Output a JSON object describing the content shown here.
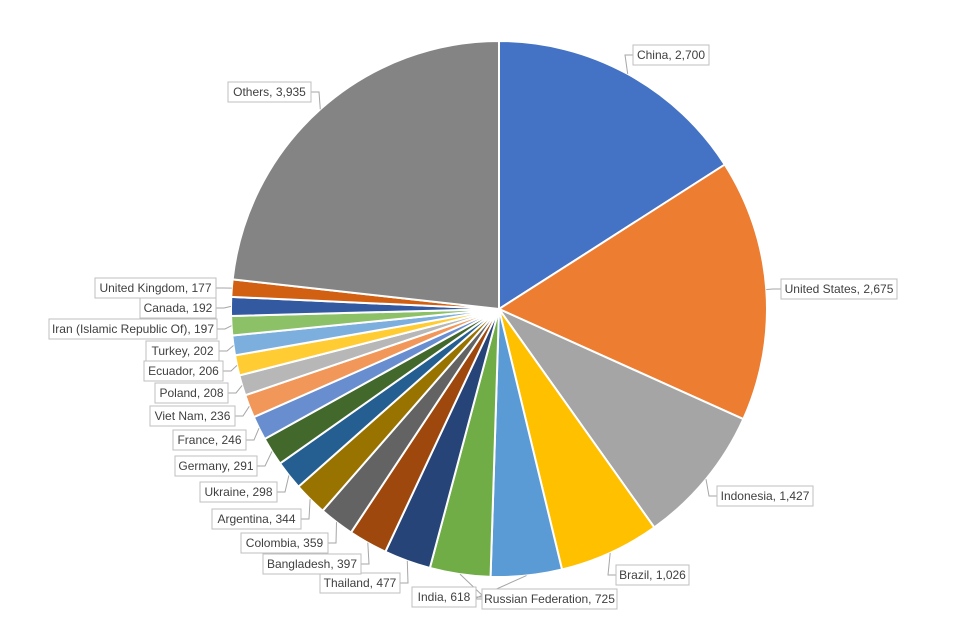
{
  "chart_data": {
    "type": "pie",
    "title": "",
    "legend": "none",
    "start_angle_deg": 0,
    "direction": "clockwise",
    "slices": [
      {
        "label": "China",
        "value": 2700,
        "display": "China, 2,700",
        "color": "#4472C4"
      },
      {
        "label": "United States",
        "value": 2675,
        "display": "United States, 2,675",
        "color": "#ED7D31"
      },
      {
        "label": "Indonesia",
        "value": 1427,
        "display": "Indonesia, 1,427",
        "color": "#A5A5A5"
      },
      {
        "label": "Brazil",
        "value": 1026,
        "display": "Brazil, 1,026",
        "color": "#FFC000"
      },
      {
        "label": "Russian Federation",
        "value": 725,
        "display": "Russian Federation, 725",
        "color": "#5B9BD5"
      },
      {
        "label": "India",
        "value": 618,
        "display": "India, 618",
        "color": "#70AD47"
      },
      {
        "label": "Thailand",
        "value": 477,
        "display": "Thailand, 477",
        "color": "#264478"
      },
      {
        "label": "Bangladesh",
        "value": 397,
        "display": "Bangladesh, 397",
        "color": "#9E480E"
      },
      {
        "label": "Colombia",
        "value": 359,
        "display": "Colombia, 359",
        "color": "#636363"
      },
      {
        "label": "Argentina",
        "value": 344,
        "display": "Argentina, 344",
        "color": "#997300"
      },
      {
        "label": "Ukraine",
        "value": 298,
        "display": "Ukraine, 298",
        "color": "#255E91"
      },
      {
        "label": "Germany",
        "value": 291,
        "display": "Germany, 291",
        "color": "#43682B"
      },
      {
        "label": "France",
        "value": 246,
        "display": "France, 246",
        "color": "#698ED0"
      },
      {
        "label": "Viet Nam",
        "value": 236,
        "display": "Viet Nam, 236",
        "color": "#F1975A"
      },
      {
        "label": "Poland",
        "value": 208,
        "display": "Poland, 208",
        "color": "#B7B7B7"
      },
      {
        "label": "Ecuador",
        "value": 206,
        "display": "Ecuador, 206",
        "color": "#FFCD33"
      },
      {
        "label": "Turkey",
        "value": 202,
        "display": "Turkey, 202",
        "color": "#7CAFDD"
      },
      {
        "label": "Iran (Islamic Republic Of)",
        "value": 197,
        "display": "Iran (Islamic Republic Of), 197",
        "color": "#8CC168"
      },
      {
        "label": "Canada",
        "value": 192,
        "display": "Canada, 192",
        "color": "#335AA1"
      },
      {
        "label": "United Kingdom",
        "value": 177,
        "display": "United Kingdom, 177",
        "color": "#D26012"
      },
      {
        "label": "Others",
        "value": 3935,
        "display": "Others, 3,935",
        "color": "#848484"
      }
    ]
  }
}
